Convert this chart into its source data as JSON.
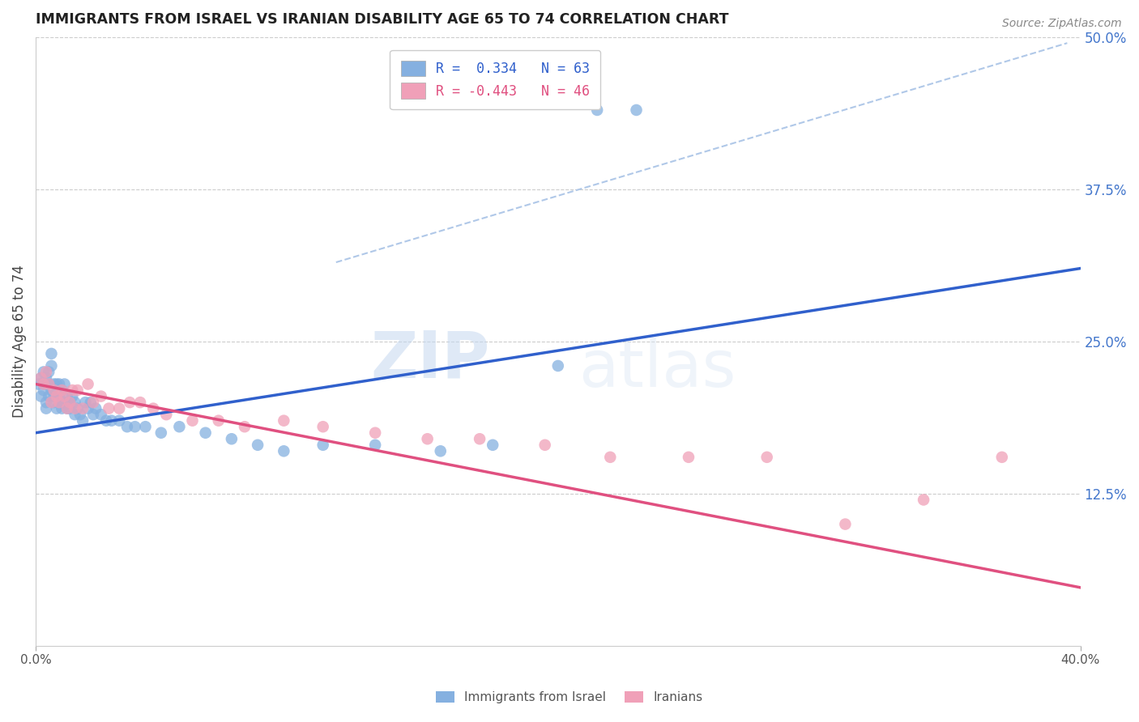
{
  "title": "IMMIGRANTS FROM ISRAEL VS IRANIAN DISABILITY AGE 65 TO 74 CORRELATION CHART",
  "source": "Source: ZipAtlas.com",
  "ylabel": "Disability Age 65 to 74",
  "xlim": [
    0.0,
    0.4
  ],
  "ylim": [
    0.0,
    0.5
  ],
  "yticks_right": [
    0.125,
    0.25,
    0.375,
    0.5
  ],
  "ytick_right_labels": [
    "12.5%",
    "25.0%",
    "37.5%",
    "50.0%"
  ],
  "legend_label1": "Immigrants from Israel",
  "legend_label2": "Iranians",
  "blue_color": "#85b0e0",
  "pink_color": "#f0a0b8",
  "blue_line_color": "#3060cc",
  "pink_line_color": "#e05080",
  "blue_dashed_color": "#b0c8e8",
  "title_color": "#222222",
  "axis_label_color": "#444444",
  "right_tick_color": "#4477cc",
  "watermark_zip": "ZIP",
  "watermark_atlas": "atlas",
  "blue_scatter_x": [
    0.001,
    0.002,
    0.002,
    0.003,
    0.003,
    0.003,
    0.004,
    0.004,
    0.004,
    0.005,
    0.005,
    0.005,
    0.006,
    0.006,
    0.006,
    0.007,
    0.007,
    0.007,
    0.008,
    0.008,
    0.008,
    0.009,
    0.009,
    0.01,
    0.01,
    0.01,
    0.011,
    0.011,
    0.012,
    0.012,
    0.013,
    0.013,
    0.014,
    0.015,
    0.015,
    0.016,
    0.017,
    0.018,
    0.019,
    0.02,
    0.021,
    0.022,
    0.023,
    0.025,
    0.027,
    0.029,
    0.032,
    0.035,
    0.038,
    0.042,
    0.048,
    0.055,
    0.065,
    0.075,
    0.085,
    0.095,
    0.11,
    0.13,
    0.155,
    0.175,
    0.2,
    0.215,
    0.23
  ],
  "blue_scatter_y": [
    0.215,
    0.22,
    0.205,
    0.225,
    0.215,
    0.21,
    0.22,
    0.2,
    0.195,
    0.215,
    0.225,
    0.205,
    0.23,
    0.24,
    0.21,
    0.205,
    0.215,
    0.2,
    0.215,
    0.195,
    0.21,
    0.205,
    0.215,
    0.2,
    0.195,
    0.21,
    0.2,
    0.215,
    0.205,
    0.195,
    0.2,
    0.195,
    0.205,
    0.2,
    0.19,
    0.195,
    0.19,
    0.185,
    0.2,
    0.195,
    0.2,
    0.19,
    0.195,
    0.19,
    0.185,
    0.185,
    0.185,
    0.18,
    0.18,
    0.18,
    0.175,
    0.18,
    0.175,
    0.17,
    0.165,
    0.16,
    0.165,
    0.165,
    0.16,
    0.165,
    0.23,
    0.44,
    0.44
  ],
  "pink_scatter_x": [
    0.002,
    0.003,
    0.004,
    0.005,
    0.006,
    0.007,
    0.008,
    0.009,
    0.01,
    0.011,
    0.012,
    0.013,
    0.014,
    0.015,
    0.016,
    0.018,
    0.02,
    0.022,
    0.025,
    0.028,
    0.032,
    0.036,
    0.04,
    0.045,
    0.05,
    0.06,
    0.07,
    0.08,
    0.095,
    0.11,
    0.13,
    0.15,
    0.17,
    0.195,
    0.22,
    0.25,
    0.28,
    0.31,
    0.34,
    0.37
  ],
  "pink_scatter_y": [
    0.22,
    0.215,
    0.225,
    0.215,
    0.2,
    0.21,
    0.205,
    0.2,
    0.21,
    0.205,
    0.195,
    0.2,
    0.21,
    0.195,
    0.21,
    0.195,
    0.215,
    0.2,
    0.205,
    0.195,
    0.195,
    0.2,
    0.2,
    0.195,
    0.19,
    0.185,
    0.185,
    0.18,
    0.185,
    0.18,
    0.175,
    0.17,
    0.17,
    0.165,
    0.155,
    0.155,
    0.155,
    0.1,
    0.12,
    0.155
  ],
  "blue_line_x0": 0.0,
  "blue_line_x1": 0.4,
  "blue_line_y0": 0.175,
  "blue_line_y1": 0.31,
  "pink_line_x0": 0.0,
  "pink_line_x1": 0.4,
  "pink_line_y0": 0.215,
  "pink_line_y1": 0.048,
  "dashed_line_x0": 0.115,
  "dashed_line_x1": 0.395,
  "dashed_line_y0": 0.315,
  "dashed_line_y1": 0.495
}
